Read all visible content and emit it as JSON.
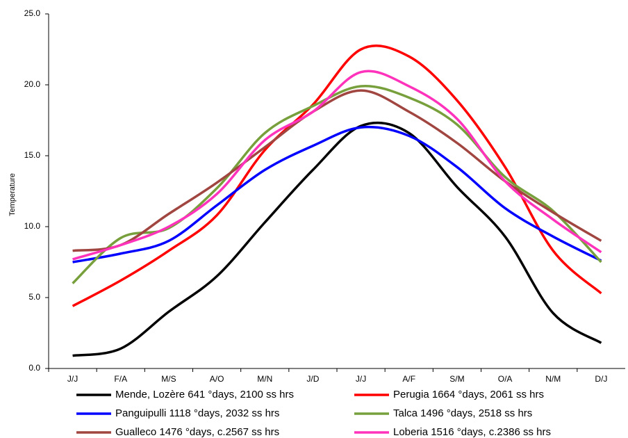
{
  "chart_data": {
    "type": "line",
    "y_label": "Temperature",
    "categories": [
      "J/J",
      "F/A",
      "M/S",
      "A/O",
      "M/N",
      "J/D",
      "J/J",
      "A/F",
      "S/M",
      "O/A",
      "N/M",
      "D/J"
    ],
    "ylim": [
      0,
      25
    ],
    "yticks": [
      {
        "value": 0,
        "label": "0.0"
      },
      {
        "value": 5,
        "label": "5.0"
      },
      {
        "value": 10,
        "label": "10.0"
      },
      {
        "value": 15,
        "label": "15.0"
      },
      {
        "value": 20,
        "label": "20.0"
      },
      {
        "value": 25,
        "label": "25.0"
      }
    ],
    "grid": false,
    "legend": "bottom",
    "smooth": true,
    "series": [
      {
        "name": "Mende, Lozère 641 °days, 2100 ss hrs",
        "color": "#000000",
        "values": [
          0.9,
          1.4,
          4.0,
          6.5,
          10.3,
          14.0,
          17.1,
          16.6,
          12.8,
          9.3,
          3.9,
          1.8
        ]
      },
      {
        "name": "Perugia 1664 °days, 2061 ss hrs",
        "color": "#ff0000",
        "values": [
          4.4,
          6.2,
          8.3,
          10.8,
          15.4,
          18.6,
          22.5,
          22.0,
          18.9,
          14.2,
          8.3,
          5.3
        ]
      },
      {
        "name": "Panguipulli 1118 °days, 2032 ss hrs",
        "color": "#0000ff",
        "values": [
          7.5,
          8.1,
          9.0,
          11.5,
          14.0,
          15.7,
          17.0,
          16.4,
          14.2,
          11.3,
          9.3,
          7.6
        ]
      },
      {
        "name": "Talca 1496 °days, 2518 ss hrs",
        "color": "#77a03c",
        "values": [
          6.0,
          9.2,
          9.9,
          12.7,
          16.6,
          18.5,
          19.9,
          19.1,
          17.2,
          13.5,
          11.1,
          7.5
        ]
      },
      {
        "name": "Gualleco 1476  °days,  c.2567 ss hrs",
        "color": "#a0453f",
        "values": [
          8.3,
          8.7,
          10.9,
          13.1,
          15.6,
          18.1,
          19.6,
          18.1,
          15.9,
          13.2,
          11.0,
          9.0
        ]
      },
      {
        "name": "Loberia  1516  °days,  c.2386 ss hrs",
        "color": "#ff33bb",
        "values": [
          7.7,
          8.7,
          10.0,
          12.3,
          16.1,
          18.1,
          20.9,
          19.9,
          17.6,
          13.2,
          10.5,
          8.2
        ]
      }
    ]
  }
}
